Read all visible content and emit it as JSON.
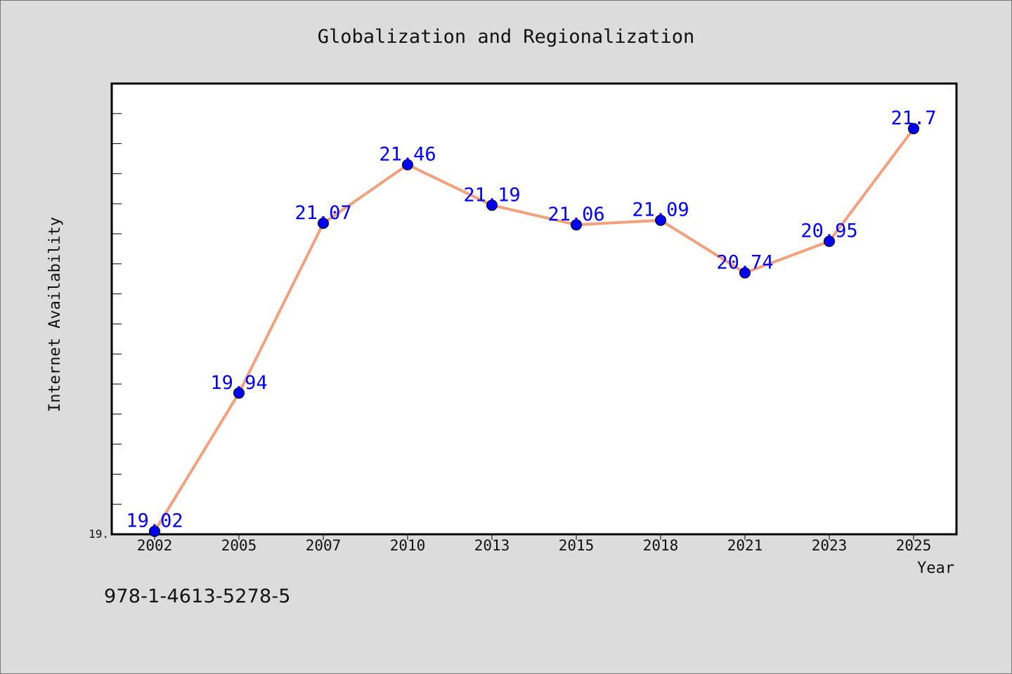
{
  "chart_data": {
    "type": "line",
    "title": "Globalization and Regionalization",
    "xlabel": "Year",
    "ylabel": "Internet Availability",
    "categories": [
      "2002",
      "2005",
      "2007",
      "2010",
      "2013",
      "2015",
      "2018",
      "2021",
      "2023",
      "2025"
    ],
    "series": [
      {
        "values": [
          19.02,
          19.94,
          21.07,
          21.46,
          21.19,
          21.06,
          21.09,
          20.74,
          20.95,
          21.7
        ]
      }
    ],
    "data_labels": [
      "19.02",
      "19.94",
      "21.07",
      "21.46",
      "21.19",
      "21.06",
      "21.09",
      "20.74",
      "20.95",
      "21.7"
    ],
    "ylim": [
      19.0,
      22.0
    ],
    "y_tick_labels": [
      "19."
    ],
    "grid": false,
    "legend": "none",
    "colors": {
      "line": "#f4a07c",
      "marker": "#0000ee",
      "data_label": "#0000ff",
      "plot_background": "#ffffff",
      "figure_background": "#dcdcdc"
    }
  },
  "footer": {
    "isbn": "978-1-4613-5278-5"
  }
}
